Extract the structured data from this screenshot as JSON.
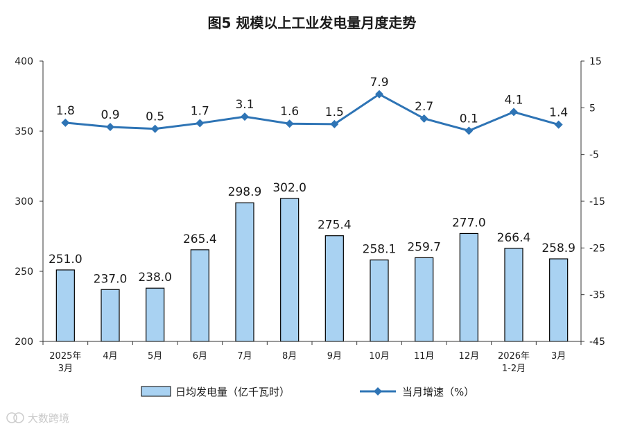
{
  "chart_data": {
    "type": "bar+line",
    "title": "图5  规模以上工业发电量月度走势",
    "categories": [
      [
        "2025年",
        "3月"
      ],
      [
        "4月"
      ],
      [
        "5月"
      ],
      [
        "6月"
      ],
      [
        "7月"
      ],
      [
        "8月"
      ],
      [
        "9月"
      ],
      [
        "10月"
      ],
      [
        "11月"
      ],
      [
        "12月"
      ],
      [
        "2026年",
        "1-2月"
      ],
      [
        "3月"
      ]
    ],
    "series": [
      {
        "name": "日均发电量（亿千瓦时）",
        "type": "bar",
        "axis": "left",
        "color": "#a9d2f2",
        "values": [
          251.0,
          237.0,
          238.0,
          265.4,
          298.9,
          302.0,
          275.4,
          258.1,
          259.7,
          277.0,
          266.4,
          258.9
        ],
        "labels": [
          "251.0",
          "237.0",
          "238.0",
          "265.4",
          "298.9",
          "302.0",
          "275.4",
          "258.1",
          "259.7",
          "277.0",
          "266.4",
          "258.9"
        ]
      },
      {
        "name": "当月增速（%）",
        "type": "line",
        "axis": "right",
        "color": "#2e74b5",
        "marker": "diamond",
        "values": [
          1.8,
          0.9,
          0.5,
          1.7,
          3.1,
          1.6,
          1.5,
          7.9,
          2.7,
          0.1,
          4.1,
          1.4
        ],
        "labels": [
          "1.8",
          "0.9",
          "0.5",
          "1.7",
          "3.1",
          "1.6",
          "1.5",
          "7.9",
          "2.7",
          "0.1",
          "4.1",
          "1.4"
        ]
      }
    ],
    "y_left": {
      "min": 200,
      "max": 400,
      "ticks": [
        200,
        250,
        300,
        350,
        400
      ]
    },
    "y_right": {
      "min": -45,
      "max": 15,
      "ticks": [
        -45,
        -35,
        -25,
        -15,
        -5,
        5,
        15
      ]
    },
    "grid": false,
    "legend_position": "bottom"
  },
  "watermark": "大数跨境",
  "watermark_icon": "kuajing-logo-icon"
}
